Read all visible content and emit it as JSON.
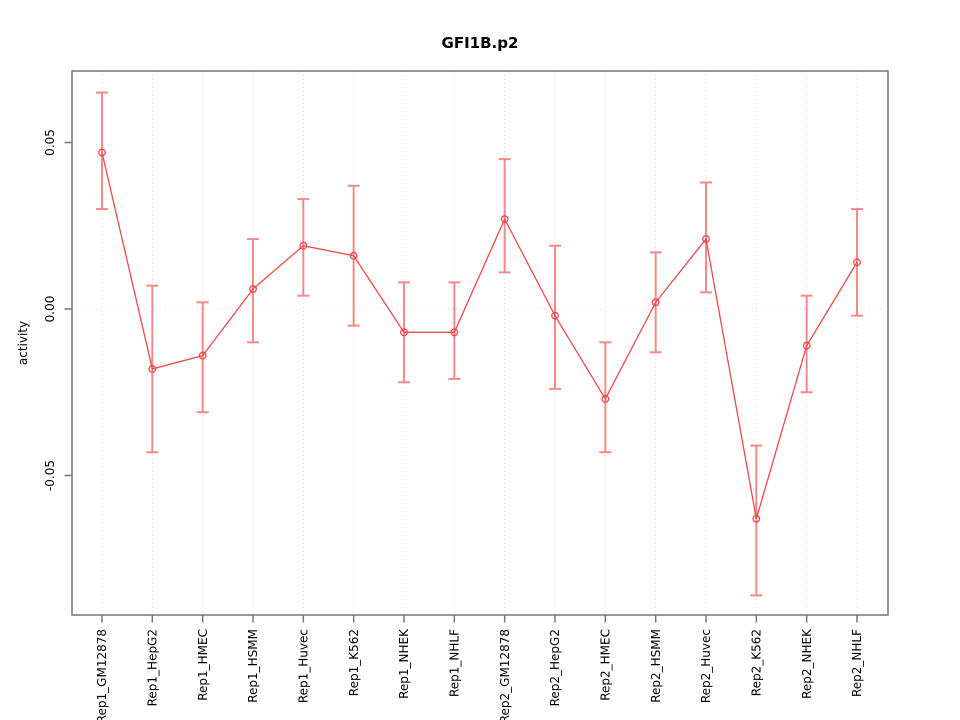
{
  "figure": {
    "title": "GFI1B.p2"
  },
  "chart_data": {
    "type": "line",
    "title": "GFI1B.p2",
    "xlabel": "",
    "ylabel": "activity",
    "ylim": [
      -0.092,
      0.0715
    ],
    "yticks": [
      0.05,
      0.0,
      -0.05
    ],
    "ytick_labels": [
      "0.05",
      "0.00",
      "-0.05"
    ],
    "grid": "vertical dotted gridline at every category; horizontal dotted line at y=0",
    "legend_position": "none",
    "point_style": "open-circle",
    "error_bars": true,
    "categories": [
      "Rep1_GM12878",
      "Rep1_HepG2",
      "Rep1_HMEC",
      "Rep1_HSMM",
      "Rep1_Huvec",
      "Rep1_K562",
      "Rep1_NHEK",
      "Rep1_NHLF",
      "Rep2_GM12878",
      "Rep2_HepG2",
      "Rep2_HMEC",
      "Rep2_HSMM",
      "Rep2_Huvec",
      "Rep2_K562",
      "Rep2_NHEK",
      "Rep2_NHLF"
    ],
    "series": [
      {
        "name": "activity",
        "values": [
          0.047,
          -0.018,
          -0.014,
          0.006,
          0.019,
          0.016,
          -0.007,
          -0.007,
          0.027,
          -0.002,
          -0.027,
          0.002,
          0.021,
          -0.063,
          -0.011,
          0.014
        ],
        "err_low": [
          0.03,
          -0.043,
          -0.031,
          -0.01,
          0.004,
          -0.005,
          -0.022,
          -0.021,
          0.011,
          -0.024,
          -0.043,
          -0.013,
          0.005,
          -0.086,
          -0.025,
          -0.002
        ],
        "err_high": [
          0.065,
          0.007,
          0.002,
          0.021,
          0.033,
          0.037,
          0.008,
          0.008,
          0.045,
          0.019,
          -0.01,
          0.017,
          0.038,
          -0.041,
          0.004,
          0.03
        ]
      }
    ],
    "colors": {
      "line": "#f04949",
      "point": "#f04949",
      "error_bar": "#f58989",
      "grid": "#d9d9d9",
      "box": "#757575",
      "tick": "#757575",
      "text": "#000000",
      "background": "#ffffff"
    }
  }
}
